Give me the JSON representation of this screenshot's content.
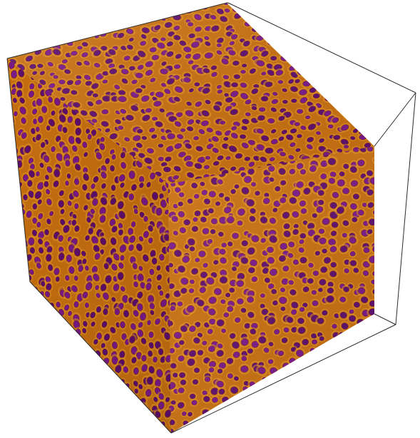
{
  "figure": {
    "kind": "3d-cube-render",
    "colors": {
      "background": "#ffffff",
      "bounding_box_edge": "#2b2b2b",
      "surface_base": "#c87010",
      "surface_highlight": "#e89a2a",
      "surface_shadow": "#9e4e0a",
      "spot_outer": "#8a2a12",
      "spot_inner": "#7a1a8a",
      "spot_core": "#5e0f6e"
    },
    "pattern": "turing-spots"
  }
}
